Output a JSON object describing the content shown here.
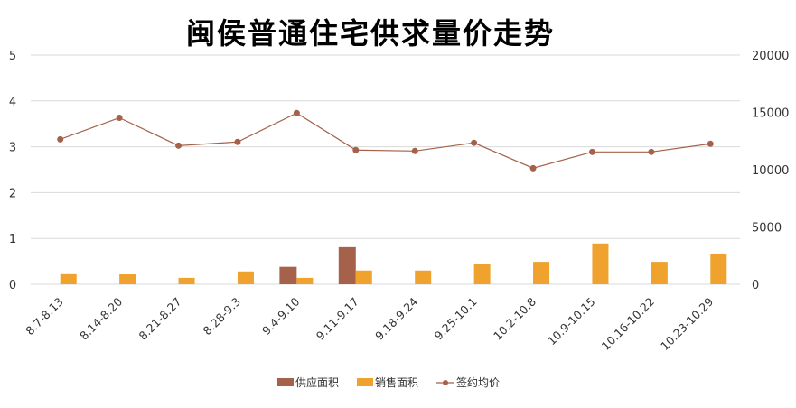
{
  "chart_data": {
    "type": "bar",
    "title": "闽侯普通住宅供求量价走势",
    "categories": [
      "8.7-8.13",
      "8.14-8.20",
      "8.21-8.27",
      "8.28-9.3",
      "9.4-9.10",
      "9.11-9.17",
      "9.18-9.24",
      "9.25-10.1",
      "10.2-10.8",
      "10.9-10.15",
      "10.16-10.22",
      "10.23-10.29"
    ],
    "y_left": {
      "range": [
        0,
        5
      ],
      "ticks": [
        "0",
        "1",
        "2",
        "3",
        "4",
        "5"
      ]
    },
    "y_right": {
      "range": [
        0,
        20000
      ],
      "ticks": [
        "0",
        "5000",
        "10000",
        "15000",
        "20000"
      ]
    },
    "grid": true,
    "legend_position": "bottom",
    "series": [
      {
        "name": "供应面积",
        "type": "bar",
        "axis": "left",
        "color": "#A5614A",
        "values": [
          0,
          0,
          0,
          0,
          0.38,
          0.81,
          0,
          0,
          0,
          0,
          0,
          0
        ]
      },
      {
        "name": "销售面积",
        "type": "bar",
        "axis": "left",
        "color": "#EFA22E",
        "values": [
          0.24,
          0.22,
          0.14,
          0.28,
          0.14,
          0.3,
          0.3,
          0.45,
          0.49,
          0.89,
          0.49,
          0.67
        ]
      },
      {
        "name": "签约均价",
        "type": "line",
        "axis": "right",
        "color": "#A5614A",
        "values": [
          12650,
          14530,
          12100,
          12420,
          14940,
          11710,
          11630,
          12340,
          10130,
          11550,
          11550,
          12260
        ]
      }
    ]
  }
}
